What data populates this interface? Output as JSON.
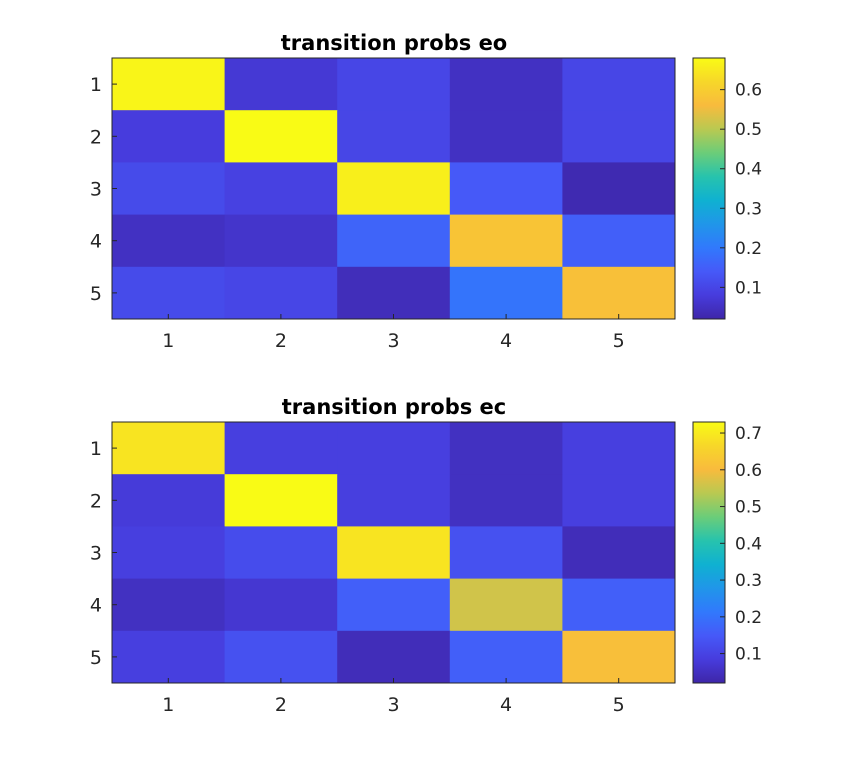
{
  "chart_data": [
    {
      "type": "heatmap",
      "title": "transition probs eo",
      "xlabel": "",
      "ylabel": "",
      "x_tick_labels": [
        "1",
        "2",
        "3",
        "4",
        "5"
      ],
      "y_tick_labels": [
        "1",
        "2",
        "3",
        "4",
        "5"
      ],
      "colormap": "parula",
      "clim": [
        0.02,
        0.68
      ],
      "colorbar_ticks": [
        "0.1",
        "0.2",
        "0.3",
        "0.4",
        "0.5",
        "0.6"
      ],
      "colorbar_values": [
        0.1,
        0.2,
        0.3,
        0.4,
        0.5,
        0.6
      ],
      "values": [
        [
          0.67,
          0.07,
          0.1,
          0.05,
          0.1
        ],
        [
          0.08,
          0.68,
          0.1,
          0.05,
          0.1
        ],
        [
          0.11,
          0.09,
          0.66,
          0.14,
          0.03
        ],
        [
          0.05,
          0.06,
          0.16,
          0.58,
          0.15
        ],
        [
          0.11,
          0.1,
          0.04,
          0.19,
          0.57
        ]
      ]
    },
    {
      "type": "heatmap",
      "title": "transition probs ec",
      "xlabel": "",
      "ylabel": "",
      "x_tick_labels": [
        "1",
        "2",
        "3",
        "4",
        "5"
      ],
      "y_tick_labels": [
        "1",
        "2",
        "3",
        "4",
        "5"
      ],
      "colormap": "parula",
      "clim": [
        0.02,
        0.73
      ],
      "colorbar_ticks": [
        "0.1",
        "0.2",
        "0.3",
        "0.4",
        "0.5",
        "0.6",
        "0.7"
      ],
      "colorbar_values": [
        0.1,
        0.2,
        0.3,
        0.4,
        0.5,
        0.6,
        0.7
      ],
      "values": [
        [
          0.69,
          0.09,
          0.09,
          0.05,
          0.09
        ],
        [
          0.08,
          0.73,
          0.09,
          0.05,
          0.09
        ],
        [
          0.09,
          0.12,
          0.69,
          0.13,
          0.04
        ],
        [
          0.05,
          0.07,
          0.16,
          0.56,
          0.16
        ],
        [
          0.09,
          0.13,
          0.04,
          0.16,
          0.61
        ]
      ]
    }
  ]
}
